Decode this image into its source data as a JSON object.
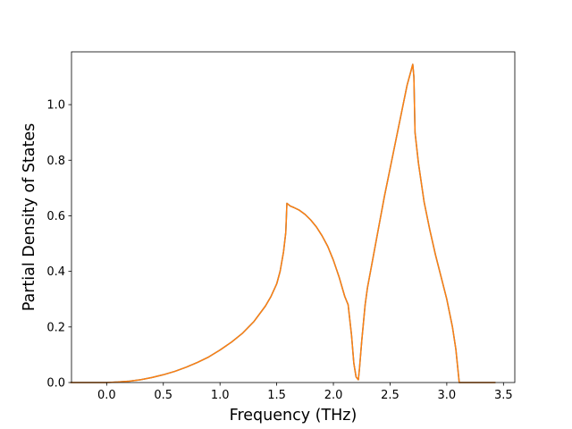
{
  "chart_data": {
    "type": "line",
    "xlabel": "Frequency (THz)",
    "ylabel": "Partial Density of States",
    "xlim": [
      -0.31,
      3.6
    ],
    "ylim": [
      0,
      1.19
    ],
    "xticks": [
      0.0,
      0.5,
      1.0,
      1.5,
      2.0,
      2.5,
      3.0,
      3.5
    ],
    "xtick_labels": [
      "0.0",
      "0.5",
      "1.0",
      "1.5",
      "2.0",
      "2.5",
      "3.0",
      "3.5"
    ],
    "yticks": [
      0.0,
      0.2,
      0.4,
      0.6,
      0.8,
      1.0
    ],
    "ytick_labels": [
      "0.0",
      "0.2",
      "0.4",
      "0.6",
      "0.8",
      "1.0"
    ],
    "grid": false,
    "series": [
      {
        "color": "#1f77b4",
        "x": [
          -0.32,
          0.0,
          0.1,
          0.2,
          0.3,
          0.4,
          0.5,
          0.6,
          0.7,
          0.8,
          0.9,
          1.0,
          1.1,
          1.2,
          1.3,
          1.4,
          1.45,
          1.5,
          1.53,
          1.56,
          1.58,
          1.59,
          1.62,
          1.65,
          1.7,
          1.75,
          1.8,
          1.85,
          1.9,
          1.95,
          2.0,
          2.05,
          2.1,
          2.13,
          2.16,
          2.18,
          2.2,
          2.22,
          2.23,
          2.25,
          2.28,
          2.3,
          2.35,
          2.4,
          2.45,
          2.5,
          2.55,
          2.6,
          2.65,
          2.69,
          2.7,
          2.71,
          2.72,
          2.75,
          2.8,
          2.85,
          2.9,
          2.95,
          3.0,
          3.05,
          3.08,
          3.1,
          3.11,
          3.2,
          3.3,
          3.43
        ],
        "y": [
          0.0,
          0.0,
          0.002,
          0.005,
          0.01,
          0.018,
          0.028,
          0.04,
          0.055,
          0.072,
          0.092,
          0.117,
          0.145,
          0.178,
          0.22,
          0.275,
          0.31,
          0.355,
          0.4,
          0.47,
          0.54,
          0.645,
          0.635,
          0.63,
          0.62,
          0.605,
          0.585,
          0.56,
          0.528,
          0.49,
          0.44,
          0.38,
          0.31,
          0.28,
          0.17,
          0.07,
          0.02,
          0.01,
          0.05,
          0.15,
          0.28,
          0.34,
          0.45,
          0.56,
          0.67,
          0.77,
          0.87,
          0.97,
          1.07,
          1.13,
          1.145,
          1.1,
          0.9,
          0.79,
          0.65,
          0.55,
          0.46,
          0.38,
          0.3,
          0.2,
          0.12,
          0.04,
          0.0,
          0.0,
          0.0,
          0.0
        ]
      },
      {
        "color": "#ff7f0e",
        "x": [
          -0.32,
          0.0,
          0.1,
          0.2,
          0.3,
          0.4,
          0.5,
          0.6,
          0.7,
          0.8,
          0.9,
          1.0,
          1.1,
          1.2,
          1.3,
          1.4,
          1.45,
          1.5,
          1.53,
          1.56,
          1.58,
          1.59,
          1.62,
          1.65,
          1.7,
          1.75,
          1.8,
          1.85,
          1.9,
          1.95,
          2.0,
          2.05,
          2.1,
          2.13,
          2.16,
          2.18,
          2.2,
          2.22,
          2.23,
          2.25,
          2.28,
          2.3,
          2.35,
          2.4,
          2.45,
          2.5,
          2.55,
          2.6,
          2.65,
          2.69,
          2.7,
          2.71,
          2.72,
          2.75,
          2.8,
          2.85,
          2.9,
          2.95,
          3.0,
          3.05,
          3.08,
          3.1,
          3.11,
          3.2,
          3.3,
          3.43
        ],
        "y": [
          0.0,
          0.0,
          0.002,
          0.005,
          0.01,
          0.018,
          0.028,
          0.04,
          0.055,
          0.072,
          0.092,
          0.117,
          0.145,
          0.178,
          0.22,
          0.275,
          0.31,
          0.355,
          0.4,
          0.47,
          0.54,
          0.645,
          0.635,
          0.63,
          0.62,
          0.605,
          0.585,
          0.56,
          0.528,
          0.49,
          0.44,
          0.38,
          0.31,
          0.28,
          0.17,
          0.07,
          0.02,
          0.01,
          0.05,
          0.15,
          0.28,
          0.34,
          0.45,
          0.56,
          0.67,
          0.77,
          0.87,
          0.97,
          1.07,
          1.13,
          1.145,
          1.1,
          0.9,
          0.79,
          0.65,
          0.55,
          0.46,
          0.38,
          0.3,
          0.2,
          0.12,
          0.04,
          0.0,
          0.0,
          0.0,
          0.0
        ]
      }
    ]
  }
}
